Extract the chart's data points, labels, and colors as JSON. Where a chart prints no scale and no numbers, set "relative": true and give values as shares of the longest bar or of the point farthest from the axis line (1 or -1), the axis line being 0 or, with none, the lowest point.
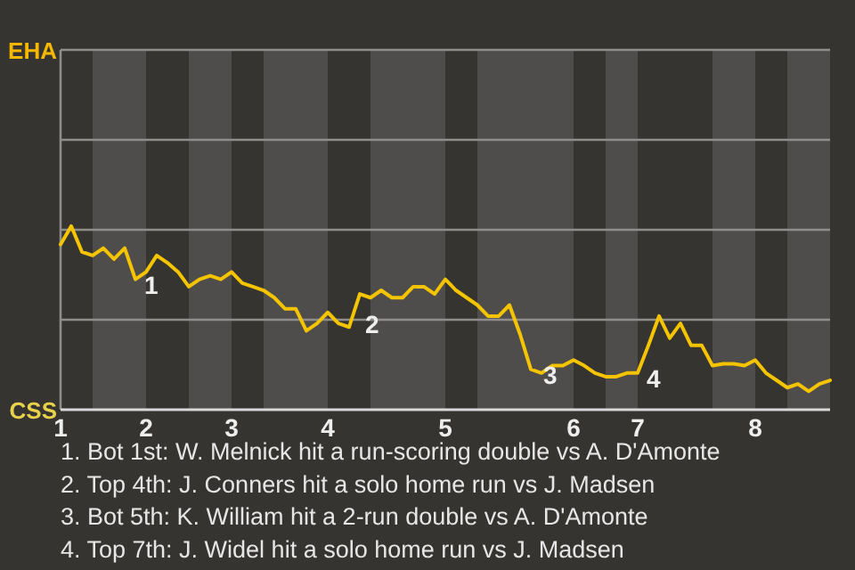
{
  "chart_data": {
    "type": "line",
    "relative": true,
    "categories": [
      "1",
      null,
      null,
      null,
      null,
      null,
      null,
      null,
      "2",
      null,
      null,
      null,
      null,
      null,
      null,
      null,
      "3",
      null,
      null,
      null,
      null,
      null,
      null,
      null,
      null,
      "4",
      null,
      null,
      null,
      null,
      null,
      null,
      null,
      null,
      null,
      null,
      "5",
      null,
      null,
      null,
      null,
      null,
      null,
      null,
      null,
      null,
      null,
      null,
      "6",
      null,
      null,
      null,
      null,
      null,
      "7",
      null,
      null,
      null,
      null,
      null,
      null,
      null,
      null,
      null,
      null,
      "8",
      null,
      null,
      null,
      null,
      null,
      null,
      null
    ],
    "series": [
      {
        "color": "#f5c400",
        "values": [
          0.9,
          1,
          0.86,
          0.84,
          0.88,
          0.82,
          0.88,
          0.71,
          0.75,
          0.84,
          0.8,
          0.75,
          0.67,
          0.71,
          0.73,
          0.71,
          0.75,
          0.69,
          0.67,
          0.65,
          0.61,
          0.55,
          0.55,
          0.43,
          0.47,
          0.53,
          0.47,
          0.45,
          0.63,
          0.61,
          0.65,
          0.61,
          0.61,
          0.67,
          0.67,
          0.63,
          0.71,
          0.65,
          0.61,
          0.57,
          0.51,
          0.51,
          0.57,
          0.41,
          0.22,
          0.2,
          0.24,
          0.24,
          0.27,
          0.24,
          0.2,
          0.18,
          0.18,
          0.2,
          0.2,
          0.35,
          0.51,
          0.39,
          0.47,
          0.35,
          0.35,
          0.24,
          0.25,
          0.25,
          0.24,
          0.27,
          0.2,
          0.16,
          0.12,
          0.14,
          0.1,
          0.14,
          0.16
        ]
      }
    ],
    "marker": "none",
    "line_style": "solid",
    "ref_lines": [
      {
        "axis": "y",
        "value": 0.49,
        "color": "#8f8e8c"
      },
      {
        "axis": "y",
        "value": 0.98,
        "color": "#8f8e8c"
      },
      {
        "axis": "y",
        "value": 1.47,
        "color": "#8f8e8c"
      }
    ],
    "annotations": [
      "EHA",
      "CSS",
      "1",
      "2",
      "3",
      "4",
      "1. Bot 1st: W. Melnick hit a run-scoring double vs A. D'Amonte",
      "2. Top 4th: J. Conners hit a solo home run vs J. Madsen",
      "3. Bot 5th: K. William hit a 2-run double vs A. D'Amonte",
      "4. Top 7th: J. Widel hit a solo home run vs J. Madsen"
    ]
  }
}
